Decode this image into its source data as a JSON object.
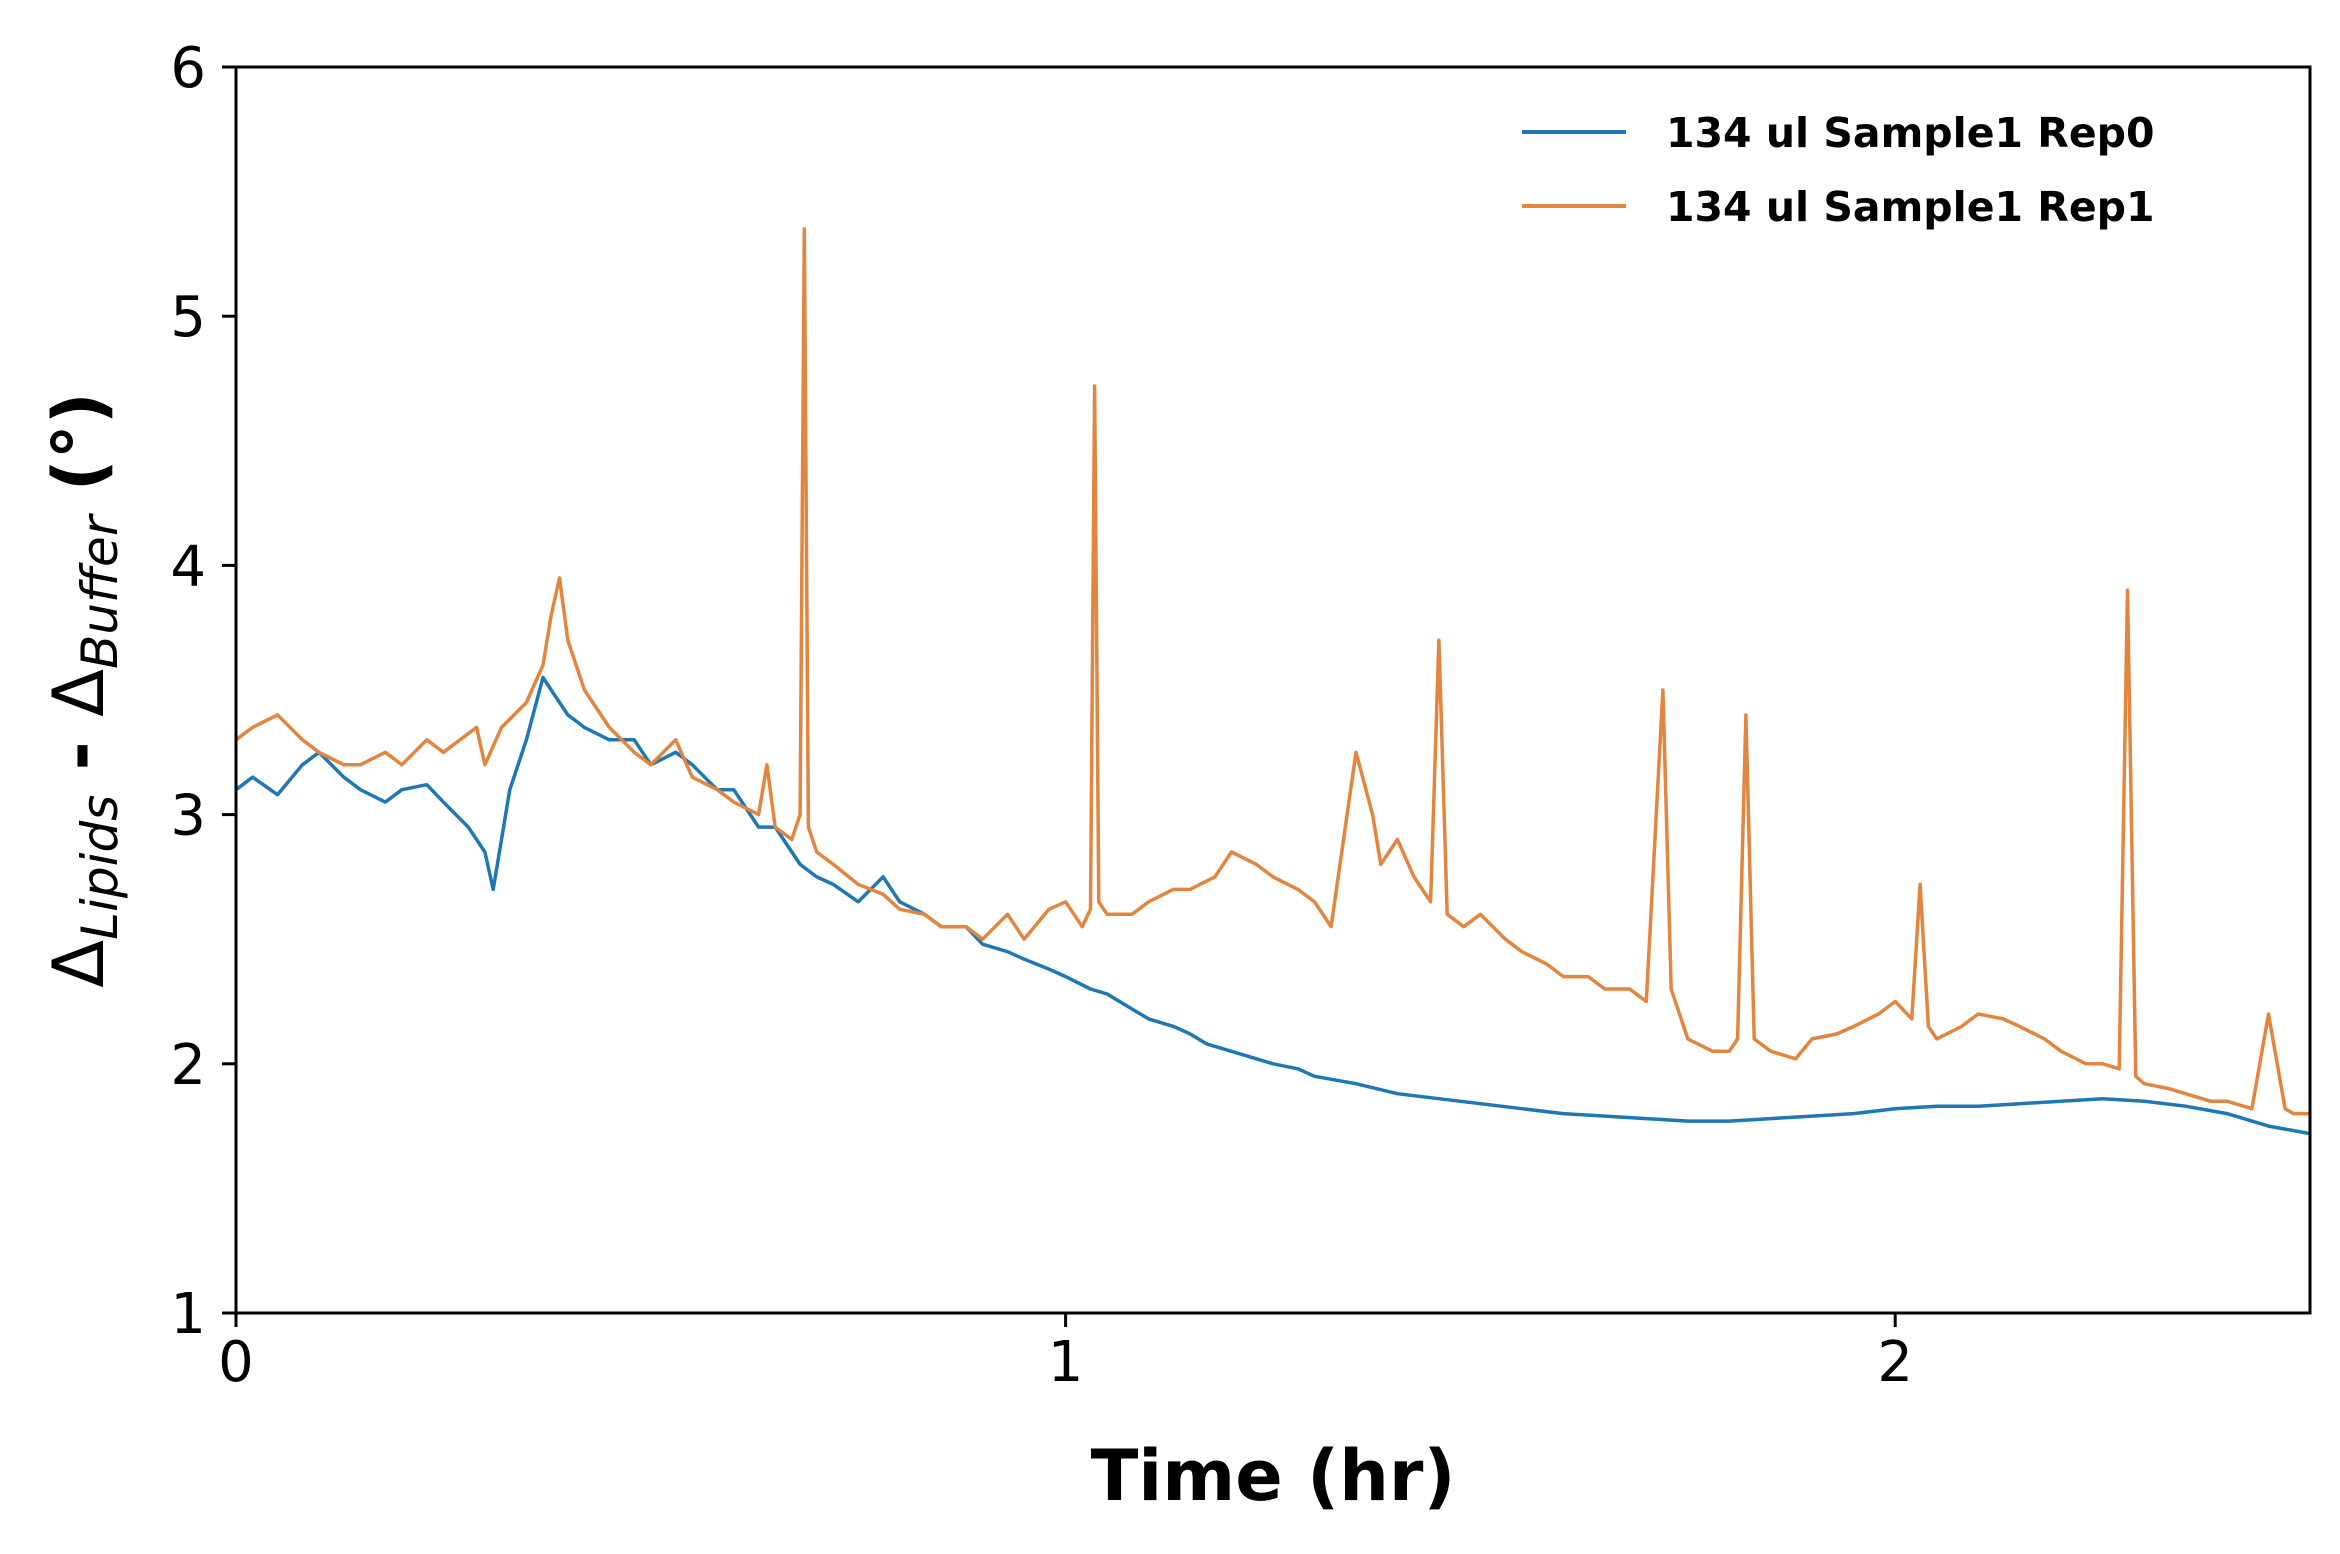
{
  "chart_data": {
    "type": "line",
    "xlabel": "Time (hr)",
    "ylabel": {
      "parts": [
        {
          "text": "Δ",
          "style": "normal"
        },
        {
          "text": "Lipids",
          "style": "italic-subscript"
        },
        {
          "text": " - ",
          "style": "bold"
        },
        {
          "text": "Δ",
          "style": "normal"
        },
        {
          "text": "Buffer",
          "style": "italic-subscript"
        },
        {
          "text": " (°)",
          "style": "bold"
        }
      ]
    },
    "xlim": [
      0,
      2.5
    ],
    "ylim": [
      1,
      6
    ],
    "xticks": [
      "0",
      "1",
      "2"
    ],
    "yticks": [
      "1",
      "2",
      "3",
      "4",
      "5",
      "6"
    ],
    "grid": false,
    "legend_position": "top-right",
    "series": [
      {
        "name": "134 ul Sample1 Rep0",
        "color": "#1f77b4",
        "x": [
          0.0,
          0.02,
          0.05,
          0.08,
          0.1,
          0.13,
          0.15,
          0.18,
          0.2,
          0.23,
          0.25,
          0.28,
          0.3,
          0.31,
          0.33,
          0.35,
          0.37,
          0.38,
          0.4,
          0.42,
          0.45,
          0.48,
          0.5,
          0.53,
          0.55,
          0.58,
          0.6,
          0.63,
          0.65,
          0.68,
          0.7,
          0.72,
          0.75,
          0.78,
          0.8,
          0.83,
          0.85,
          0.88,
          0.9,
          0.93,
          0.95,
          0.98,
          1.0,
          1.03,
          1.05,
          1.08,
          1.1,
          1.13,
          1.15,
          1.17,
          1.2,
          1.23,
          1.25,
          1.28,
          1.3,
          1.35,
          1.4,
          1.45,
          1.5,
          1.55,
          1.6,
          1.65,
          1.7,
          1.75,
          1.8,
          1.85,
          1.9,
          1.95,
          2.0,
          2.05,
          2.1,
          2.15,
          2.2,
          2.25,
          2.3,
          2.35,
          2.4,
          2.45,
          2.5
        ],
        "y": [
          3.1,
          3.15,
          3.08,
          3.2,
          3.25,
          3.15,
          3.1,
          3.05,
          3.1,
          3.12,
          3.05,
          2.95,
          2.85,
          2.7,
          3.1,
          3.3,
          3.55,
          3.5,
          3.4,
          3.35,
          3.3,
          3.3,
          3.2,
          3.25,
          3.2,
          3.1,
          3.1,
          2.95,
          2.95,
          2.8,
          2.75,
          2.72,
          2.65,
          2.75,
          2.65,
          2.6,
          2.55,
          2.55,
          2.48,
          2.45,
          2.42,
          2.38,
          2.35,
          2.3,
          2.28,
          2.22,
          2.18,
          2.15,
          2.12,
          2.08,
          2.05,
          2.02,
          2.0,
          1.98,
          1.95,
          1.92,
          1.88,
          1.86,
          1.84,
          1.82,
          1.8,
          1.79,
          1.78,
          1.77,
          1.77,
          1.78,
          1.79,
          1.8,
          1.82,
          1.83,
          1.83,
          1.84,
          1.85,
          1.86,
          1.85,
          1.83,
          1.8,
          1.75,
          1.72
        ]
      },
      {
        "name": "134 ul Sample1 Rep1",
        "color": "#e1853f",
        "x": [
          0.0,
          0.02,
          0.05,
          0.08,
          0.1,
          0.13,
          0.15,
          0.18,
          0.2,
          0.23,
          0.25,
          0.27,
          0.29,
          0.3,
          0.32,
          0.35,
          0.37,
          0.38,
          0.39,
          0.4,
          0.42,
          0.45,
          0.48,
          0.5,
          0.53,
          0.55,
          0.58,
          0.6,
          0.63,
          0.64,
          0.65,
          0.67,
          0.68,
          0.685,
          0.69,
          0.7,
          0.72,
          0.75,
          0.78,
          0.8,
          0.83,
          0.85,
          0.88,
          0.9,
          0.93,
          0.95,
          0.98,
          1.0,
          1.02,
          1.03,
          1.035,
          1.04,
          1.05,
          1.08,
          1.1,
          1.13,
          1.15,
          1.18,
          1.2,
          1.23,
          1.25,
          1.28,
          1.3,
          1.32,
          1.35,
          1.37,
          1.38,
          1.4,
          1.42,
          1.44,
          1.45,
          1.46,
          1.48,
          1.5,
          1.53,
          1.55,
          1.58,
          1.6,
          1.63,
          1.65,
          1.68,
          1.7,
          1.72,
          1.73,
          1.74,
          1.75,
          1.78,
          1.8,
          1.81,
          1.82,
          1.83,
          1.85,
          1.88,
          1.9,
          1.93,
          1.95,
          1.98,
          2.0,
          2.02,
          2.03,
          2.04,
          2.05,
          2.08,
          2.1,
          2.13,
          2.15,
          2.18,
          2.2,
          2.23,
          2.25,
          2.27,
          2.28,
          2.29,
          2.3,
          2.33,
          2.35,
          2.38,
          2.4,
          2.43,
          2.45,
          2.47,
          2.48,
          2.5
        ],
        "y": [
          3.3,
          3.35,
          3.4,
          3.3,
          3.25,
          3.2,
          3.2,
          3.25,
          3.2,
          3.3,
          3.25,
          3.3,
          3.35,
          3.2,
          3.35,
          3.45,
          3.6,
          3.8,
          3.95,
          3.7,
          3.5,
          3.35,
          3.25,
          3.2,
          3.3,
          3.15,
          3.1,
          3.05,
          3.0,
          3.2,
          2.95,
          2.9,
          3.0,
          5.35,
          2.95,
          2.85,
          2.8,
          2.72,
          2.68,
          2.62,
          2.6,
          2.55,
          2.55,
          2.5,
          2.6,
          2.5,
          2.62,
          2.65,
          2.55,
          2.62,
          4.72,
          2.65,
          2.6,
          2.6,
          2.65,
          2.7,
          2.7,
          2.75,
          2.85,
          2.8,
          2.75,
          2.7,
          2.65,
          2.55,
          3.25,
          3.0,
          2.8,
          2.9,
          2.75,
          2.65,
          3.7,
          2.6,
          2.55,
          2.6,
          2.5,
          2.45,
          2.4,
          2.35,
          2.35,
          2.3,
          2.3,
          2.25,
          3.5,
          2.3,
          2.2,
          2.1,
          2.05,
          2.05,
          2.1,
          3.4,
          2.1,
          2.05,
          2.02,
          2.1,
          2.12,
          2.15,
          2.2,
          2.25,
          2.18,
          2.72,
          2.15,
          2.1,
          2.15,
          2.2,
          2.18,
          2.15,
          2.1,
          2.05,
          2.0,
          2.0,
          1.98,
          3.9,
          1.95,
          1.92,
          1.9,
          1.88,
          1.85,
          1.85,
          1.82,
          2.2,
          1.82,
          1.8,
          1.8
        ]
      }
    ]
  }
}
